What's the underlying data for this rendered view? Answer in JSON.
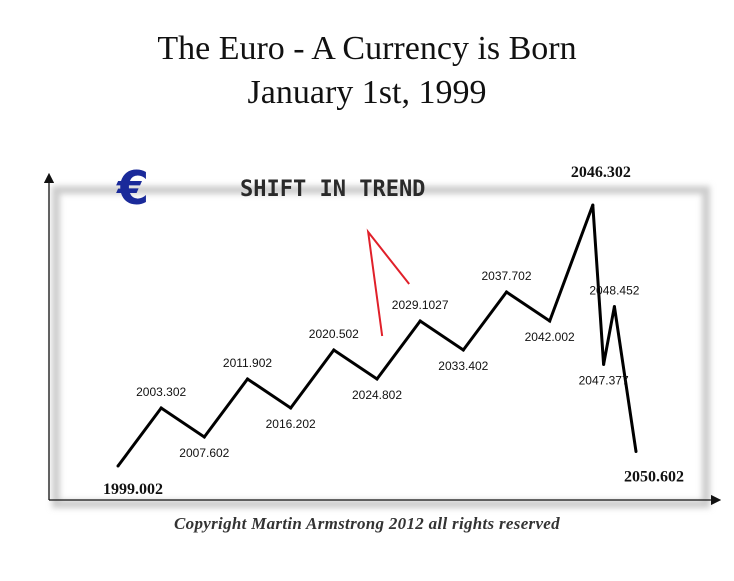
{
  "header": {
    "title_line1": "The Euro - A Currency is Born",
    "title_line2": "January 1st, 1999"
  },
  "footer": {
    "copyright": "Copyright Martin Armstrong 2012 all rights reserved"
  },
  "chart_data": {
    "type": "line",
    "title": "The Euro - A Currency is Born",
    "subtitle": "January 1st, 1999",
    "xlabel": "",
    "ylabel": "",
    "grid": false,
    "annotation": "Shift in Trend",
    "annotation_target": "2029.1027",
    "logo_symbol": "€",
    "points": [
      {
        "label": "1999.002",
        "date": 1999.002,
        "level": 0,
        "type": "low"
      },
      {
        "label": "2003.302",
        "date": 2003.302,
        "level": 2,
        "type": "high"
      },
      {
        "label": "2007.602",
        "date": 2007.602,
        "level": 1,
        "type": "low"
      },
      {
        "label": "2011.902",
        "date": 2011.902,
        "level": 3,
        "type": "high"
      },
      {
        "label": "2016.202",
        "date": 2016.202,
        "level": 2,
        "type": "low"
      },
      {
        "label": "2020.502",
        "date": 2020.502,
        "level": 4,
        "type": "high"
      },
      {
        "label": "2024.802",
        "date": 2024.802,
        "level": 3,
        "type": "low"
      },
      {
        "label": "2029.1027",
        "date": 2029.1027,
        "level": 5,
        "type": "high"
      },
      {
        "label": "2033.402",
        "date": 2033.402,
        "level": 4,
        "type": "low"
      },
      {
        "label": "2037.702",
        "date": 2037.702,
        "level": 6,
        "type": "high"
      },
      {
        "label": "2042.002",
        "date": 2042.002,
        "level": 5,
        "type": "low"
      },
      {
        "label": "2046.302",
        "date": 2046.302,
        "level": 9,
        "type": "high"
      },
      {
        "label": "2047.377",
        "date": 2047.377,
        "level": 3.5,
        "type": "low"
      },
      {
        "label": "2048.452",
        "date": 2048.452,
        "level": 5.5,
        "type": "high"
      },
      {
        "label": "2050.602",
        "date": 2050.602,
        "level": 0.5,
        "type": "low"
      }
    ],
    "colors": {
      "line": "#000000",
      "annotation": "#e0202a",
      "euro": "#1a2a9a"
    }
  }
}
